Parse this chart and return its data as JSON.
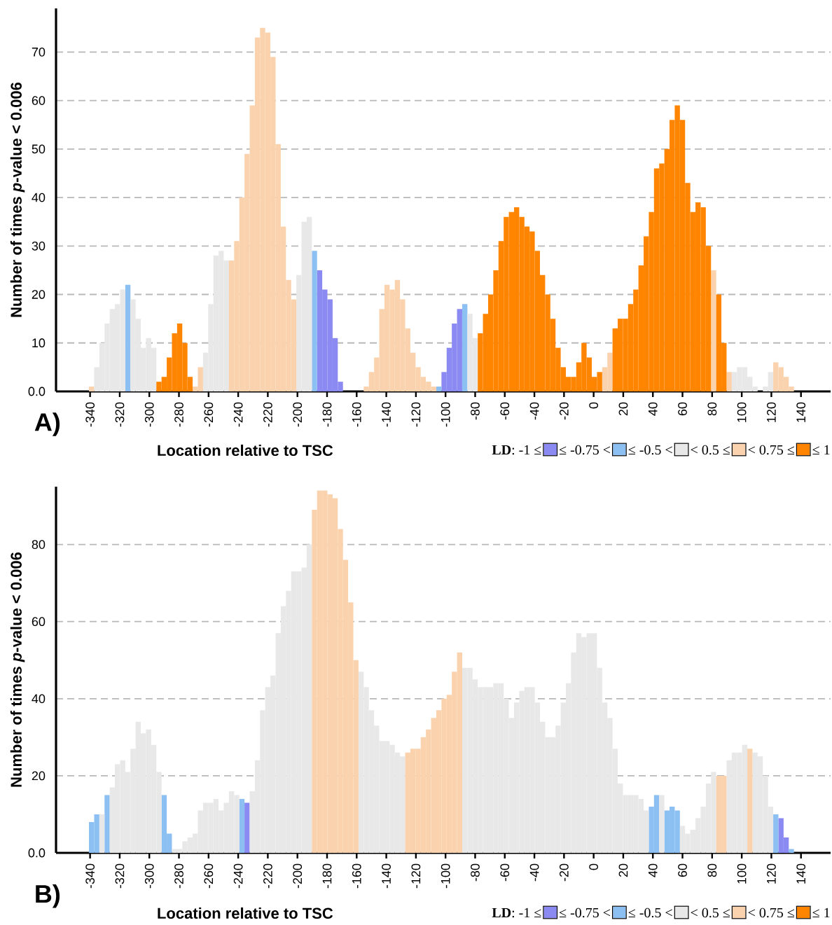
{
  "chart_data": [
    {
      "type": "bar",
      "annotations": [
        "A)"
      ],
      "xlabel": "Location relative to TSC",
      "ylabel": "Number of times *p*-value < 0.006",
      "legend_title": "**LD**: -1 ≤",
      "legend": "bottom right",
      "grid": "y",
      "xlim": [
        -363,
        160
      ],
      "ylim": [
        0,
        79
      ],
      "xticks": [
        -340,
        -320,
        -300,
        -280,
        -260,
        -240,
        -220,
        -200,
        -180,
        -160,
        -140,
        -120,
        -100,
        -80,
        -60,
        -40,
        -20,
        0,
        20,
        40,
        60,
        80,
        100,
        120,
        140
      ],
      "yticks": [
        {
          "value": 0,
          "label": "0.0"
        },
        10,
        20,
        30,
        40,
        50,
        60,
        70
      ],
      "series": [
        {
          "name": "≤ -0.75 <",
          "color": "#8a8af2",
          "x": [
            -185,
            -181.5,
            -178,
            -174.5,
            -171,
            -101,
            -97.5,
            -94,
            -90.5
          ],
          "values": [
            25,
            21,
            19,
            11,
            2,
            4,
            9,
            14,
            17
          ]
        },
        {
          "name": "≤ -0.5 <",
          "color": "#8cbff2",
          "x": [
            -314.5,
            -188.5,
            -104.5,
            -87
          ],
          "values": [
            22,
            29,
            1,
            18
          ]
        },
        {
          "name": "< 0.5 ≤",
          "color": "#e8e8e8",
          "x": [
            -335.5,
            -332,
            -328.5,
            -325,
            -321.5,
            -318,
            -311,
            -307.5,
            -304,
            -300.5,
            -297,
            -262,
            -258.5,
            -255,
            -251.5,
            -248,
            -199,
            -195.5,
            -192,
            -83.5,
            -80,
            95,
            98.5,
            102,
            105.5,
            109,
            116,
            119.5
          ],
          "values": [
            5,
            10,
            14,
            17,
            18,
            21,
            19,
            15,
            9,
            11,
            9,
            8,
            18,
            28,
            29,
            27,
            24,
            35,
            36,
            16,
            11,
            4,
            5,
            5,
            3,
            1,
            1,
            4
          ]
        },
        {
          "name": "< 0.75 ≤",
          "color": "#fad3ae",
          "x": [
            -339,
            -269,
            -265.5,
            -244.5,
            -241,
            -237.5,
            -234,
            -230.5,
            -227,
            -223.5,
            -220,
            -216.5,
            -213,
            -209.5,
            -206,
            -202.5,
            -153.5,
            -150,
            -146.5,
            -143,
            -139.5,
            -136,
            -132.5,
            -129,
            -125.5,
            -122,
            -118.5,
            -115,
            -111.5,
            -108,
            7.5,
            11,
            81,
            91.5,
            123,
            126.5,
            130,
            133.5
          ],
          "values": [
            1,
            1,
            5,
            27,
            31,
            40,
            49,
            59,
            73,
            75,
            74,
            69,
            51,
            34,
            23,
            19,
            1,
            4,
            7,
            17,
            22,
            21,
            23,
            19,
            13,
            8,
            5,
            3,
            2,
            1,
            5,
            8,
            25,
            4,
            6,
            5,
            3,
            1
          ]
        },
        {
          "name": "≤ 1",
          "color": "#ff8500",
          "x": [
            -293.5,
            -290,
            -286.5,
            -283,
            -279.5,
            -276,
            -272.5,
            -76.5,
            -73,
            -69.5,
            -66,
            -62.5,
            -59,
            -55.5,
            -52,
            -48.5,
            -45,
            -41.5,
            -38,
            -34.5,
            -31,
            -27.5,
            -24,
            -20.5,
            -17,
            -13.5,
            -10,
            -6.5,
            -3,
            0.5,
            4,
            14.5,
            18,
            21.5,
            25,
            28.5,
            32,
            35.5,
            39,
            42.5,
            46,
            49.5,
            53,
            56.5,
            60,
            63.5,
            67,
            70.5,
            74,
            77.5,
            84.5,
            88
          ],
          "values": [
            2,
            3,
            7,
            12,
            14,
            10,
            3,
            12,
            16,
            20,
            25,
            31,
            36,
            37,
            38,
            36,
            34,
            33,
            29,
            24,
            20,
            15,
            9,
            5,
            3,
            3,
            6,
            10,
            7,
            3,
            4,
            13,
            15,
            15,
            18,
            21,
            26,
            32,
            37,
            46,
            47,
            50,
            56,
            59,
            56,
            43,
            37,
            39,
            38,
            30,
            20,
            10
          ]
        }
      ]
    },
    {
      "type": "bar",
      "annotations": [
        "B)"
      ],
      "xlabel": "Location relative to TSC",
      "ylabel": "Number of times *p*-value < 0.006",
      "legend_title": "**LD**: -1 ≤",
      "legend": "bottom right",
      "grid": "y",
      "xlim": [
        -363,
        160
      ],
      "ylim": [
        0,
        95
      ],
      "xticks": [
        -340,
        -320,
        -300,
        -280,
        -260,
        -240,
        -220,
        -200,
        -180,
        -160,
        -140,
        -120,
        -100,
        -80,
        -60,
        -40,
        -20,
        0,
        20,
        40,
        60,
        80,
        100,
        120,
        140
      ],
      "yticks": [
        {
          "value": 0,
          "label": "0.0"
        },
        20,
        40,
        60,
        80
      ],
      "series": [
        {
          "name": "≤ -0.75 <",
          "color": "#8a8af2",
          "x": [
            -234,
            126.5,
            130
          ],
          "values": [
            13,
            9,
            4
          ]
        },
        {
          "name": "≤ -0.5 <",
          "color": "#8cbff2",
          "x": [
            -339,
            -335.5,
            -328.5,
            -290,
            -286.5,
            -237.5,
            39,
            42.5,
            49.5,
            53,
            56.5,
            123,
            133.5
          ],
          "values": [
            8,
            10,
            15,
            15,
            5,
            14,
            12,
            15,
            11,
            12,
            11,
            10,
            1
          ]
        },
        {
          "name": "< 0.5 ≤",
          "color": "#e8e8e8",
          "x": [
            -332,
            -325,
            -321.5,
            -318,
            -314.5,
            -311,
            -307.5,
            -304,
            -300.5,
            -297,
            -293.5,
            -283,
            -279.5,
            -276,
            -272.5,
            -269,
            -265.5,
            -262,
            -258.5,
            -255,
            -251.5,
            -248,
            -244.5,
            -241,
            -230.5,
            -227,
            -223.5,
            -220,
            -216.5,
            -213,
            -209.5,
            -206,
            -202.5,
            -199,
            -195.5,
            -192,
            -157,
            -153.5,
            -150,
            -146.5,
            -143,
            -139.5,
            -136,
            -132.5,
            -129,
            -87,
            -83.5,
            -80,
            -76.5,
            -73,
            -69.5,
            -66,
            -62.5,
            -59,
            -55.5,
            -52,
            -48.5,
            -45,
            -41.5,
            -38,
            -34.5,
            -31,
            -27.5,
            -24,
            -20.5,
            -17,
            -13.5,
            -10,
            -6.5,
            -3,
            0.5,
            4,
            7.5,
            11,
            14.5,
            18,
            21.5,
            25,
            28.5,
            32,
            35.5,
            46,
            60,
            63.5,
            67,
            70.5,
            74,
            77.5,
            81,
            91.5,
            95,
            98.5,
            102,
            109,
            112.5,
            116,
            119.5
          ],
          "values": [
            10,
            17,
            23,
            24,
            21,
            27,
            34,
            31,
            32,
            28,
            21,
            1,
            1,
            3,
            4,
            5,
            11,
            13,
            13,
            14,
            11,
            13,
            16,
            15,
            16,
            24,
            37,
            43,
            46,
            57,
            64,
            68,
            73,
            73,
            74,
            80,
            47,
            43,
            37,
            33,
            29,
            29,
            28,
            26,
            25,
            48,
            48,
            45,
            43,
            43,
            43,
            44,
            44,
            40,
            35,
            39,
            42,
            43,
            43,
            39,
            34,
            30,
            30,
            33,
            39,
            44,
            52,
            57,
            56,
            57,
            57,
            48,
            39,
            35,
            27,
            18,
            15,
            15,
            15,
            14,
            11,
            15,
            7,
            5,
            6,
            9,
            12,
            18,
            21,
            24,
            26,
            26,
            28,
            26,
            25,
            20,
            12
          ]
        },
        {
          "name": "< 0.75 ≤",
          "color": "#fad3ae",
          "x": [
            -188.5,
            -185,
            -181.5,
            -178,
            -174.5,
            -171,
            -167.5,
            -164,
            -160.5,
            -125.5,
            -122,
            -118.5,
            -115,
            -111.5,
            -108,
            -104.5,
            -101,
            -97.5,
            -94,
            -90.5,
            84.5,
            88,
            105.5
          ],
          "values": [
            89,
            94,
            94,
            93,
            92,
            84,
            76,
            65,
            50,
            26,
            27,
            27,
            30,
            32,
            35,
            37,
            40,
            41,
            47,
            52,
            20,
            20,
            27
          ]
        },
        {
          "name": "≤ 1",
          "color": "#ff8500"
        }
      ]
    }
  ]
}
